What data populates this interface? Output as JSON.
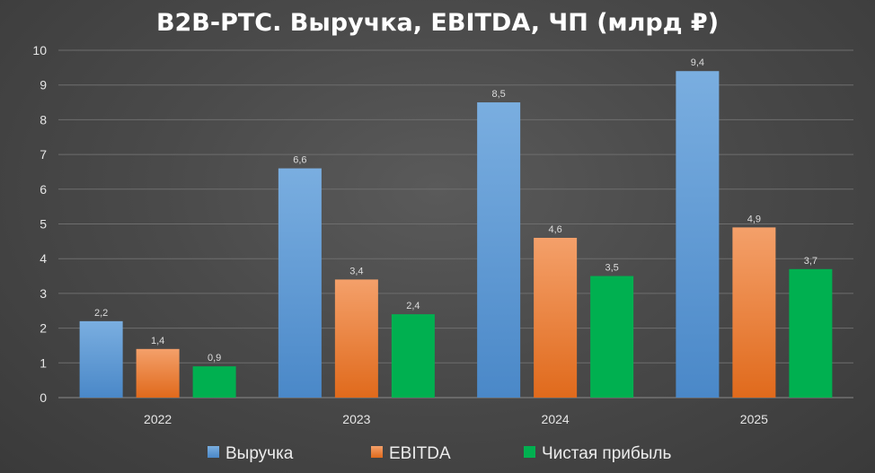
{
  "chart_data": {
    "type": "bar",
    "title": "B2B-РТС. Выручка, EBITDA, ЧП (млрд ₽)",
    "categories": [
      "2022",
      "2023",
      "2024",
      "2025"
    ],
    "series": [
      {
        "name": "Выручка",
        "values": [
          2.2,
          6.6,
          8.5,
          9.4
        ],
        "labels": [
          "2,2",
          "6,6",
          "8,5",
          "9,4"
        ],
        "color": "#5b9bd5",
        "color_light": "#7aaee0",
        "color_dark": "#4a88c8"
      },
      {
        "name": "EBITDA",
        "values": [
          1.4,
          3.4,
          4.6,
          4.9
        ],
        "labels": [
          "1,4",
          "3,4",
          "4,6",
          "4,9"
        ],
        "color": "#ed7d31",
        "color_light": "#f4a06a",
        "color_dark": "#e06a1c"
      },
      {
        "name": "Чистая прибыль",
        "values": [
          0.9,
          2.4,
          3.5,
          3.7
        ],
        "labels": [
          "0,9",
          "2,4",
          "3,5",
          "3,7"
        ],
        "color": "#00b050",
        "color_light": "#00b050",
        "color_dark": "#00b050"
      }
    ],
    "y_ticks": [
      "0",
      "1",
      "2",
      "3",
      "4",
      "5",
      "6",
      "7",
      "8",
      "9",
      "10"
    ],
    "ylim": [
      0,
      10
    ],
    "grid": true,
    "legend_position": "bottom",
    "xlabel": "",
    "ylabel": ""
  },
  "icons": {
    "legend_marker": "square"
  }
}
